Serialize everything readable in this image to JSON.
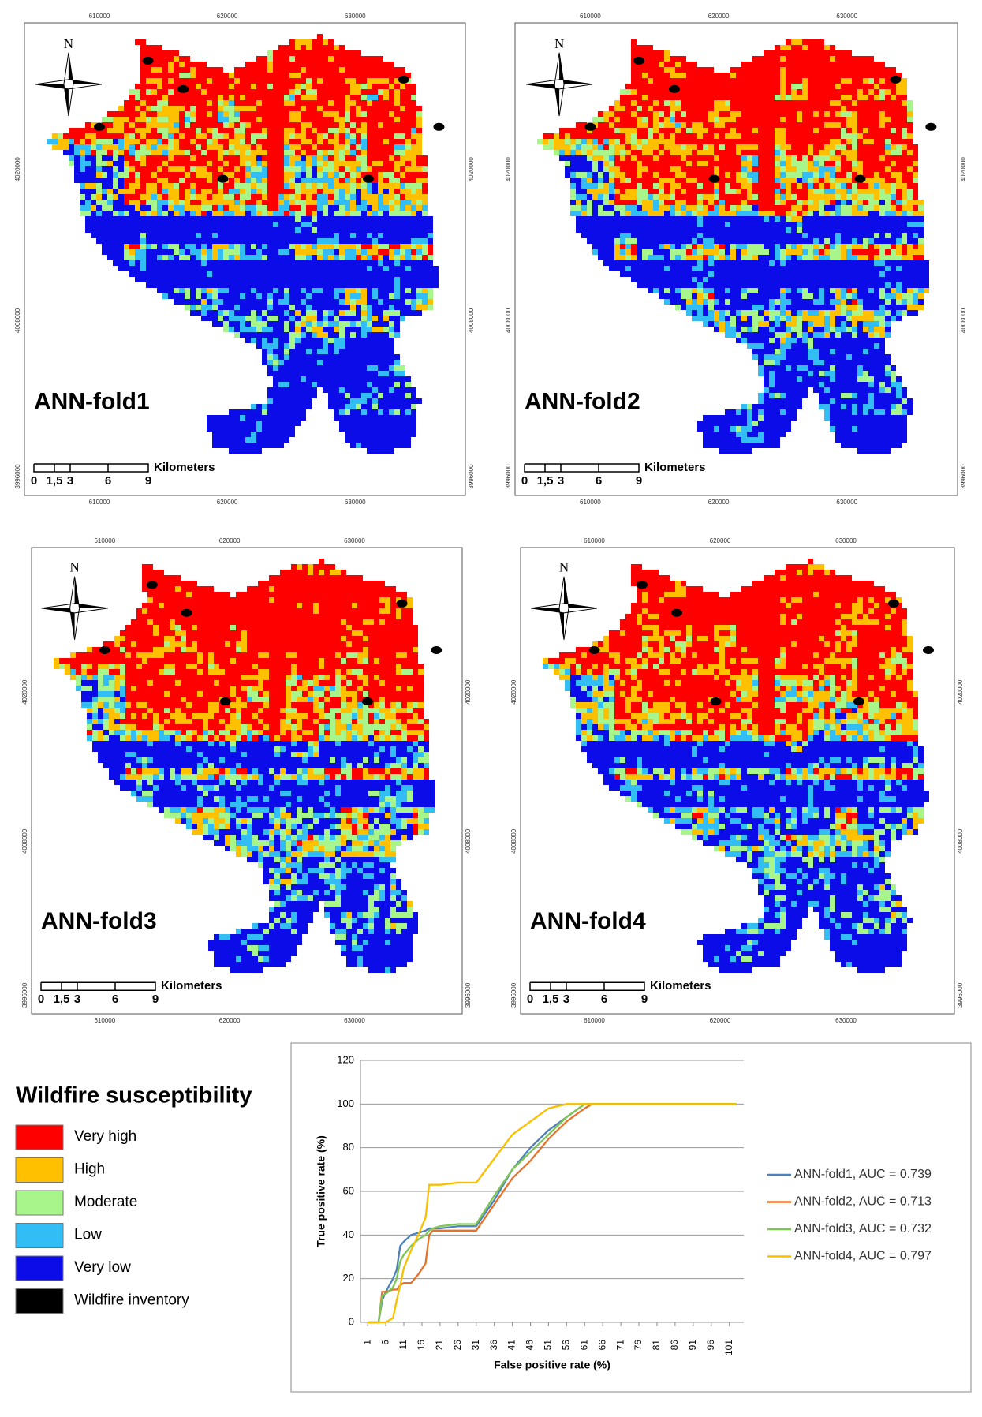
{
  "maps": [
    {
      "title": "ANN-fold1",
      "redness": 0.0
    },
    {
      "title": "ANN-fold2",
      "redness": 0.06
    },
    {
      "title": "ANN-fold3",
      "redness": 0.14
    },
    {
      "title": "ANN-fold4",
      "redness": 0.1
    }
  ],
  "map_axes": {
    "x_labels": [
      "610000",
      "620000",
      "630000"
    ],
    "y_labels": [
      "4020000",
      "4008000",
      "3996000"
    ],
    "scale_labels": [
      "0",
      "1,5",
      "3",
      "6",
      "9"
    ],
    "scale_unit": "Kilometers",
    "north": "N"
  },
  "legend": {
    "title": "Wildfire susceptibility",
    "items": [
      {
        "name": "Very high",
        "color": "#ff0000"
      },
      {
        "name": "High",
        "color": "#ffc000"
      },
      {
        "name": "Moderate",
        "color": "#a8f58c"
      },
      {
        "name": "Low",
        "color": "#33bdf5"
      },
      {
        "name": "Very low",
        "color": "#0c0ce8"
      },
      {
        "name": "Wildfire inventory",
        "color": "#000000"
      }
    ]
  },
  "chart_data": {
    "type": "line",
    "xlabel": "False positive rate (%)",
    "ylabel": "True positive rate (%)",
    "x": [
      1,
      4,
      5,
      6,
      8,
      9,
      10,
      11,
      13,
      15,
      17,
      18,
      19,
      21,
      26,
      31,
      36,
      41,
      46,
      51,
      56,
      61,
      63,
      66,
      101,
      103
    ],
    "xlim": [
      -1,
      105
    ],
    "xticks": [
      1,
      6,
      11,
      16,
      21,
      26,
      31,
      36,
      41,
      46,
      51,
      56,
      61,
      66,
      71,
      76,
      81,
      86,
      91,
      96,
      101
    ],
    "ylim": [
      0,
      120
    ],
    "yticks": [
      0,
      20,
      40,
      60,
      80,
      100,
      120
    ],
    "grid": true,
    "series": [
      {
        "name": "ANN-fold1, AUC = 0.739",
        "color": "#4f81bd",
        "values": [
          0,
          0,
          10,
          14,
          20,
          24,
          35,
          37,
          40,
          41,
          42,
          43,
          43,
          43,
          44,
          44,
          56,
          70,
          80,
          88,
          94,
          100,
          100,
          100,
          100,
          100
        ]
      },
      {
        "name": "ANN-fold2, AUC = 0.713",
        "color": "#e8712a",
        "values": [
          0,
          0,
          14,
          14,
          15,
          15,
          17,
          18,
          18,
          22,
          27,
          40,
          42,
          42,
          42,
          42,
          54,
          66,
          74,
          84,
          92,
          98,
          100,
          100,
          100,
          100
        ]
      },
      {
        "name": "ANN-fold3, AUC = 0.732",
        "color": "#7dc653",
        "values": [
          0,
          0,
          12,
          13,
          16,
          20,
          28,
          31,
          35,
          38,
          40,
          42,
          43,
          44,
          45,
          45,
          58,
          70,
          78,
          86,
          94,
          100,
          100,
          100,
          100,
          100
        ]
      },
      {
        "name": "ANN-fold4, AUC = 0.797",
        "color": "#f8c000",
        "values": [
          0,
          0,
          0,
          0,
          2,
          10,
          17,
          25,
          33,
          40,
          48,
          63,
          63,
          63,
          64,
          64,
          75,
          86,
          92,
          98,
          100,
          100,
          100,
          100,
          100,
          100
        ]
      }
    ]
  }
}
